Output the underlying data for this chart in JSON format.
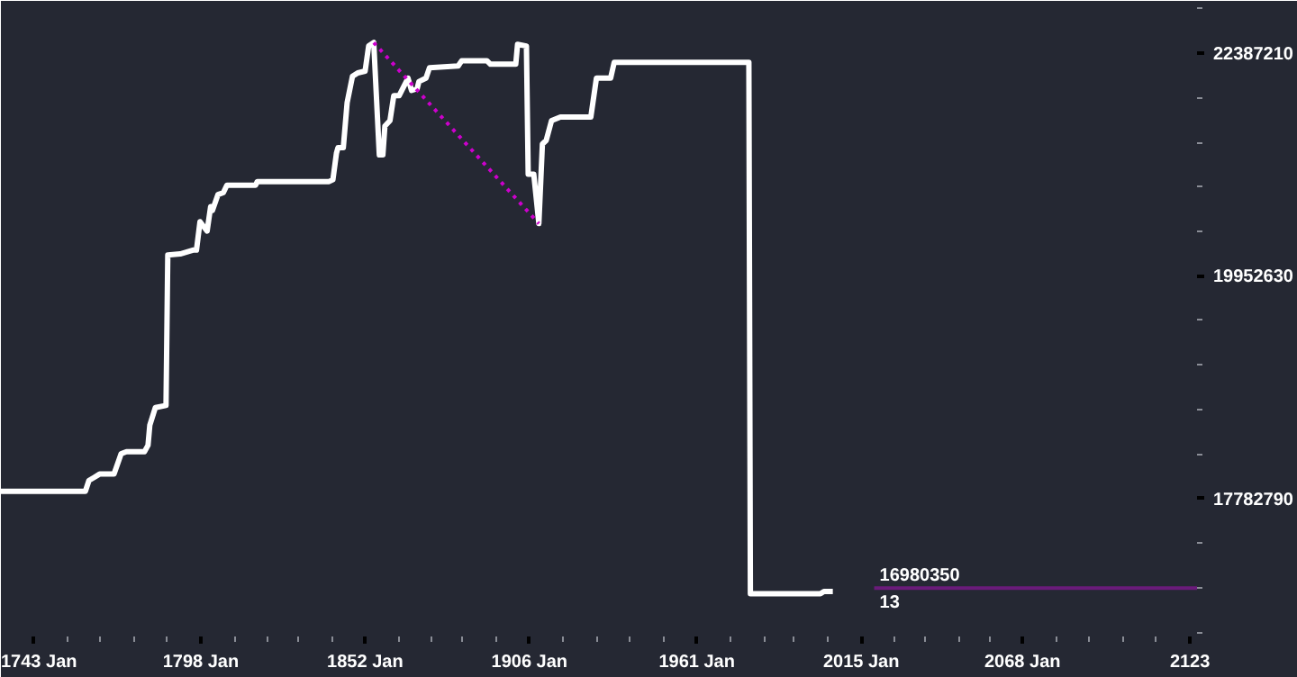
{
  "chart_data": {
    "type": "line",
    "log": "y",
    "grid": false,
    "marker": "none",
    "xlim": [
      "1732-05",
      "2125-05"
    ],
    "ylim": [
      16560000,
      23000000
    ],
    "xticks": [
      {
        "value": "1743-01",
        "label": "1743 Jan"
      },
      {
        "value": "1798-01",
        "label": "1798 Jan"
      },
      {
        "value": "1852-01",
        "label": "1852 Jan"
      },
      {
        "value": "1906-01",
        "label": "1906 Jan"
      },
      {
        "value": "1961-01",
        "label": "1961 Jan"
      },
      {
        "value": "2015-01",
        "label": "2015 Jan"
      },
      {
        "value": "2068-01",
        "label": "2068 Jan"
      },
      {
        "value": "2123-01",
        "label": "2123"
      },
      {
        "value": "1754-01",
        "label": null
      },
      {
        "value": "1765-01",
        "label": null
      },
      {
        "value": "1776-01",
        "label": null
      },
      {
        "value": "1787-01",
        "label": null
      },
      {
        "value": "1809-01",
        "label": null
      },
      {
        "value": "1820-01",
        "label": null
      },
      {
        "value": "1830-01",
        "label": null
      },
      {
        "value": "1841-01",
        "label": null
      },
      {
        "value": "1863-01",
        "label": null
      },
      {
        "value": "1874-01",
        "label": null
      },
      {
        "value": "1884-01",
        "label": null
      },
      {
        "value": "1895-01",
        "label": null
      },
      {
        "value": "1917-01",
        "label": null
      },
      {
        "value": "1928-01",
        "label": null
      },
      {
        "value": "1939-01",
        "label": null
      },
      {
        "value": "1950-01",
        "label": null
      },
      {
        "value": "1972-01",
        "label": null
      },
      {
        "value": "1983-01",
        "label": null
      },
      {
        "value": "1993-01",
        "label": null
      },
      {
        "value": "2004-01",
        "label": null
      },
      {
        "value": "2026-01",
        "label": null
      },
      {
        "value": "2036-01",
        "label": null
      },
      {
        "value": "2047-01",
        "label": null
      },
      {
        "value": "2057-01",
        "label": null
      },
      {
        "value": "2079-01",
        "label": null
      },
      {
        "value": "2090-01",
        "label": null
      },
      {
        "value": "2101-01",
        "label": null
      },
      {
        "value": "2112-01",
        "label": null
      }
    ],
    "yticks": [
      22387210,
      19952630,
      17782790,
      {
        "value": 22908677,
        "label": null
      },
      {
        "value": 21877616,
        "label": null
      },
      {
        "value": 21379621,
        "label": null
      },
      {
        "value": 20892961,
        "label": null
      },
      {
        "value": 20417379,
        "label": null
      },
      {
        "value": 19498446,
        "label": null
      },
      {
        "value": 19054607,
        "label": null
      },
      {
        "value": 18620871,
        "label": null
      },
      {
        "value": 18197009,
        "label": null
      },
      {
        "value": 17378008,
        "label": null
      },
      {
        "value": 16982437,
        "label": null
      },
      {
        "value": 16595869,
        "label": null
      }
    ],
    "series": [
      {
        "color": "#ffffff",
        "line_style": "solid",
        "x": [
          "1732-05",
          "1760-02",
          "1761-04",
          "1763-01",
          "1764-10",
          "1769-07",
          "1771-11",
          "1773-08",
          "1779-07",
          "1780-09",
          "1781-04",
          "1783-02",
          "1786-08",
          "1787-03",
          "1791-04",
          "1795-06",
          "1796-08",
          "1797-10",
          "1800-02",
          "1801-04",
          "1801-11",
          "1803-09",
          "1805-06",
          "1806-08",
          "1810-03",
          "1816-01",
          "1816-08",
          "1840-03",
          "1841-06",
          "1842-08",
          "1843-02",
          "1844-11",
          "1846-02",
          "1847-11",
          "1849-08",
          "1852-01",
          "1853-03",
          "1854-11",
          "1856-09",
          "1857-11",
          "1858-07",
          "1860-03",
          "1861-06",
          "1863-03",
          "1866-02",
          "1867-04",
          "1869-02",
          "1869-09",
          "1872-01",
          "1873-03",
          "1882-08",
          "1883-10",
          "1892-01",
          "1893-03",
          "1901-07",
          "1902-02",
          "1905-01",
          "1905-08",
          "1907-06",
          "1909-02",
          "1910-04",
          "1911-07",
          "1913-04",
          "1916-03",
          "1919-09",
          "1926-03",
          "1928-01",
          "1932-09",
          "1933-11",
          "1978-02",
          "1978-08",
          "2001-08",
          "2002-10",
          "2005-09"
        ],
        "values": [
          17850000,
          17850000,
          17950000,
          17980000,
          18010000,
          18010000,
          18200000,
          18220000,
          18220000,
          18280000,
          18470000,
          18640000,
          18660000,
          20170000,
          20180000,
          20220000,
          20220000,
          20520000,
          20420000,
          20680000,
          20640000,
          20810000,
          20830000,
          20910000,
          20910000,
          20910000,
          20950000,
          20950000,
          20970000,
          21260000,
          21320000,
          21320000,
          21820000,
          22120000,
          22160000,
          22180000,
          22470000,
          22510000,
          21240000,
          21240000,
          21560000,
          21620000,
          21900000,
          21900000,
          22100000,
          21960000,
          21980000,
          22060000,
          22100000,
          22220000,
          22240000,
          22300000,
          22300000,
          22260000,
          22260000,
          22490000,
          22470000,
          21030000,
          21030000,
          20500000,
          21360000,
          21400000,
          21620000,
          21660000,
          21660000,
          21660000,
          22100000,
          22100000,
          22280000,
          22280000,
          16930000,
          16930000,
          16950000,
          16950000
        ]
      },
      {
        "color": "#cc00cc",
        "line_style": "dotted",
        "x": [
          "1854-11",
          "1909-02"
        ],
        "values": [
          22510000,
          20500000
        ]
      },
      {
        "color": "#6a1b7a",
        "line_style": "solid",
        "x": [
          "2019-04",
          "2125-05"
        ],
        "values": [
          16980350,
          16980350
        ]
      }
    ],
    "annotations": [
      {
        "text": "16980350",
        "x": "2019-04",
        "y": 16980350
      },
      {
        "text": "13",
        "x": "2019-04",
        "y": 16980350
      }
    ]
  }
}
